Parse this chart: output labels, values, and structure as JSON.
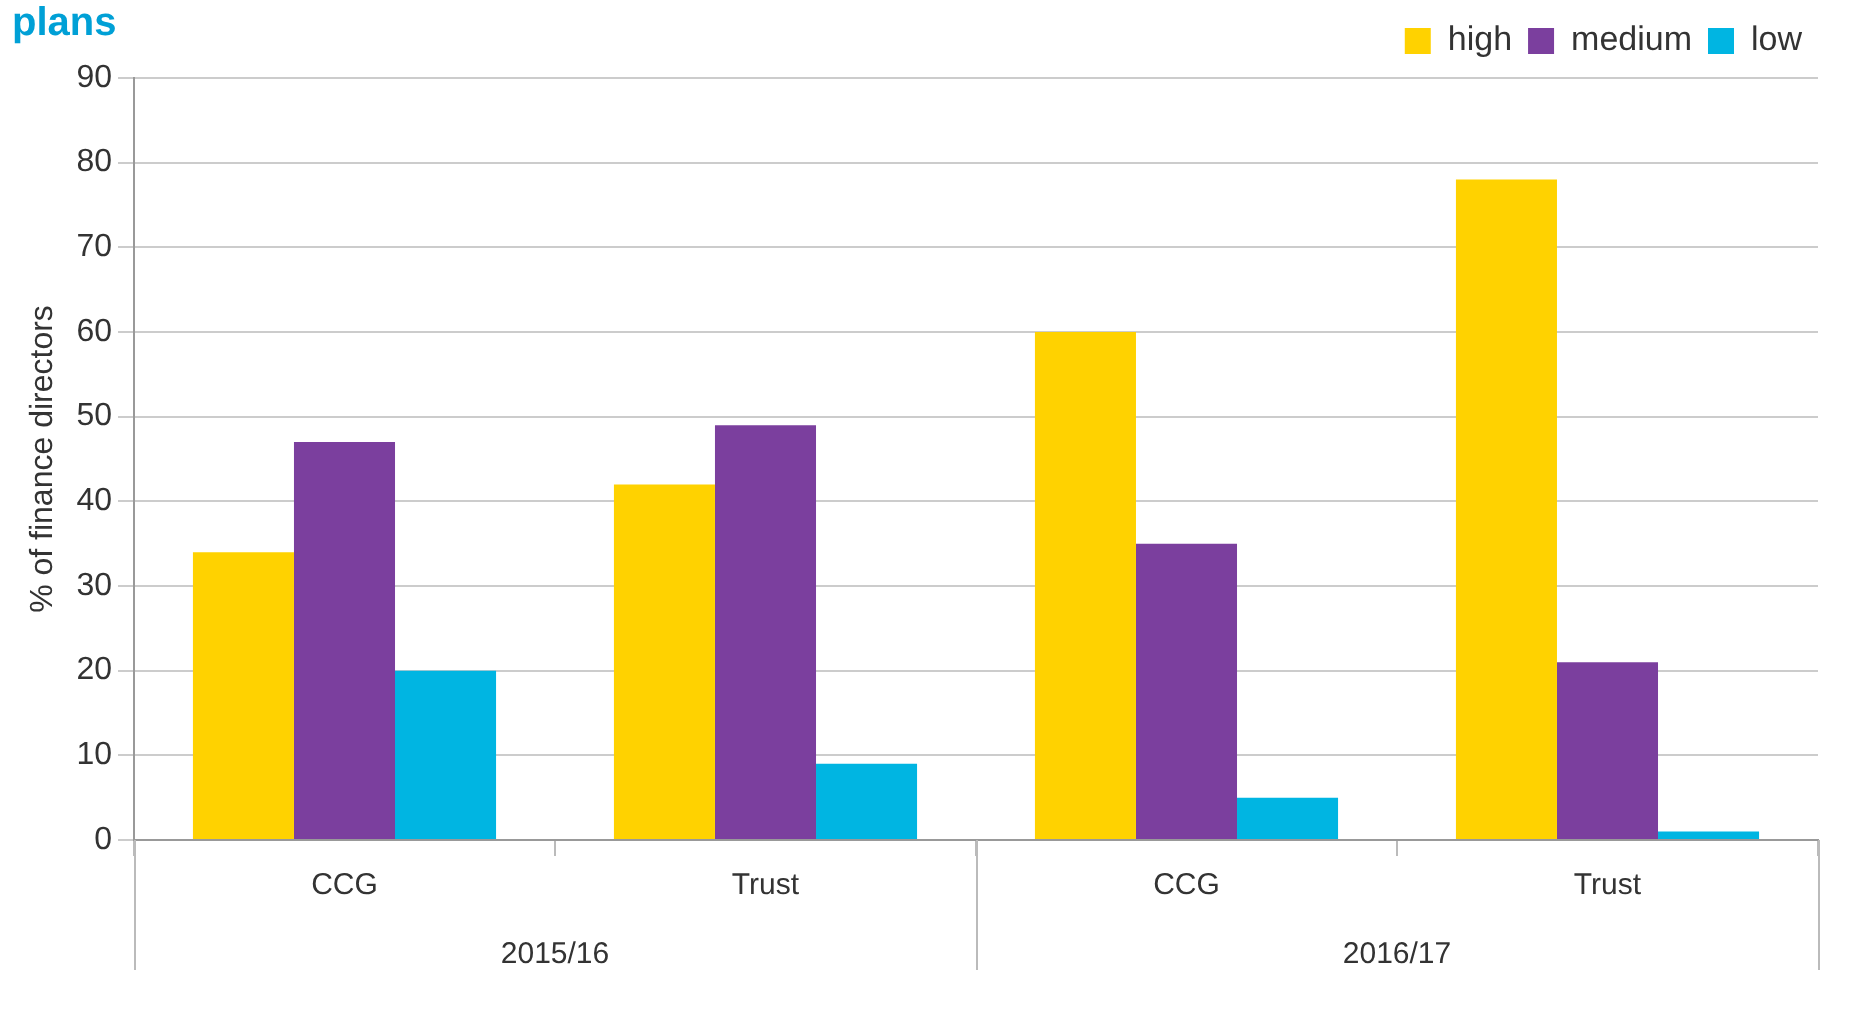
{
  "chart_data": {
    "type": "bar",
    "title": "plans",
    "ylabel": "% of finance directors",
    "categories": [
      "CCG",
      "Trust",
      "CCG",
      "Trust"
    ],
    "series": [
      {
        "name": "high",
        "color": "#ffd200",
        "values": [
          34,
          42,
          60,
          78
        ]
      },
      {
        "name": "medium",
        "color": "#7b3f9e",
        "values": [
          47,
          49,
          35,
          21
        ]
      },
      {
        "name": "low",
        "color": "#00b5e2",
        "values": [
          20,
          9,
          5,
          1
        ]
      }
    ],
    "annotations": [
      "2015/16",
      "2016/17"
    ],
    "ylim": [
      0,
      90
    ],
    "yticks": [
      0,
      10,
      20,
      30,
      40,
      50,
      60,
      70,
      80,
      90
    ],
    "grid": "y",
    "legend": "top right"
  }
}
